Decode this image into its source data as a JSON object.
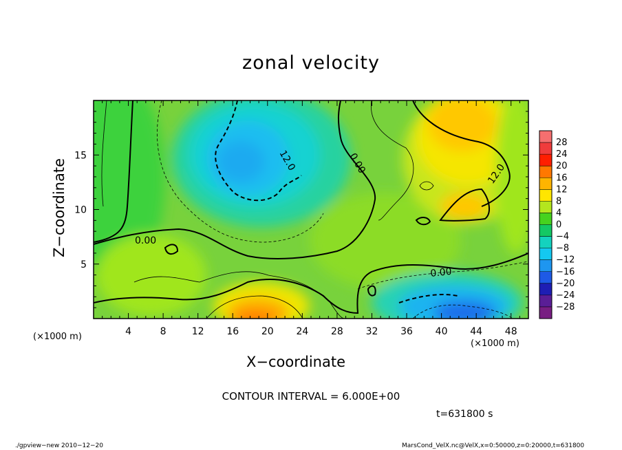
{
  "chart_data": {
    "type": "heatmap",
    "title": "zonal velocity",
    "xlabel": "X−coordinate",
    "ylabel": "Z−coordinate",
    "x_unit": "(×1000 m)",
    "x_ticks": [
      "4",
      "8",
      "12",
      "16",
      "20",
      "24",
      "28",
      "32",
      "36",
      "40",
      "44",
      "48"
    ],
    "y_ticks": [
      "5",
      "10",
      "15"
    ],
    "xlim": [
      0,
      50
    ],
    "ylim": [
      0,
      20
    ],
    "colorbar": {
      "labels": [
        "28",
        "24",
        "20",
        "16",
        "12",
        "8",
        "4",
        "0",
        "−4",
        "−8",
        "−12",
        "−16",
        "−20",
        "−24",
        "−28"
      ],
      "colors": [
        "#f56f6f",
        "#f03c3c",
        "#ff1e00",
        "#ff7800",
        "#ffb400",
        "#ffe600",
        "#b4e61e",
        "#46d21e",
        "#14c864",
        "#14d2be",
        "#14c8f0",
        "#1e96f0",
        "#1e5ae6",
        "#1e1eb4",
        "#5a1e96",
        "#781e82"
      ]
    },
    "contour_labels": [
      "12.0",
      "0.00",
      "12.0",
      "0.00",
      "0.00"
    ],
    "contour_interval_text": "CONTOUR INTERVAL = 6.000E+00",
    "time_text": "t=631800 s"
  },
  "footer": {
    "left": "./gpview−new   2010−12−20",
    "right": "MarsCond_VelX.nc@VelX,x=0:50000,z=0:20000,t=631800"
  }
}
